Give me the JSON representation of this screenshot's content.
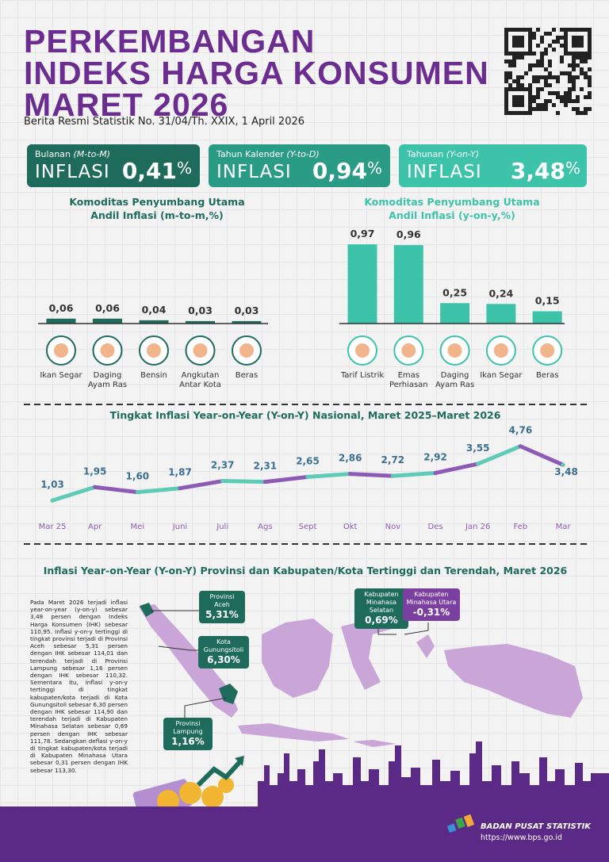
{
  "header": {
    "title_lines": [
      "PERKEMBANGAN",
      "INDEKS HARGA KONSUMEN",
      "MARET 2026"
    ],
    "subtitle": "Berita Resmi Statistik No. 31/04/Th. XXIX, 1 April 2026"
  },
  "cards": [
    {
      "label": "Bulanan",
      "label_note": "(M-to-M)",
      "word": "INFLASI",
      "value": "0,41",
      "unit": "%",
      "color": "#1e6b5b"
    },
    {
      "label": "Tahun Kalender",
      "label_note": "(Y-to-D)",
      "word": "INFLASI",
      "value": "0,94",
      "unit": "%",
      "color": "#2a9c86"
    },
    {
      "label": "Tahunan",
      "label_note": "(Y-on-Y)",
      "word": "INFLASI",
      "value": "3,48",
      "unit": "%",
      "color": "#3cc3aa"
    }
  ],
  "chart_data": [
    {
      "type": "bar",
      "title": "Komoditas Penyumbang Utama",
      "subtitle": "Andil Inflasi (m-to-m,%)",
      "title_color": "#1e6b5b",
      "categories": [
        "Ikan Segar",
        "Daging Ayam Ras",
        "Bensin",
        "Angkutan Antar Kota",
        "Beras"
      ],
      "values": [
        0.06,
        0.06,
        0.04,
        0.03,
        0.03
      ],
      "value_labels": [
        "0,06",
        "0,06",
        "0,04",
        "0,03",
        "0,03"
      ],
      "color": "#1e6b5b",
      "ylim": [
        0,
        1
      ]
    },
    {
      "type": "bar",
      "title": "Komoditas Penyumbang Utama",
      "subtitle": "Andil Inflasi (y-on-y,%)",
      "title_color": "#3cc3aa",
      "categories": [
        "Tarif Listrik",
        "Emas Perhiasan",
        "Daging Ayam Ras",
        "Ikan Segar",
        "Beras"
      ],
      "values": [
        0.97,
        0.96,
        0.25,
        0.24,
        0.15
      ],
      "value_labels": [
        "0,97",
        "0,96",
        "0,25",
        "0,24",
        "0,15"
      ],
      "color": "#3cc3aa",
      "ylim": [
        0,
        1
      ]
    },
    {
      "type": "line",
      "title": "Tingkat Inflasi Year-on-Year (Y-on-Y) Nasional, Maret 2025–Maret 2026",
      "categories": [
        "Mar 25",
        "Apr",
        "Mei",
        "Juni",
        "Juli",
        "Ags",
        "Sept",
        "Okt",
        "Nov",
        "Des",
        "Jan 26",
        "Feb",
        "Mar"
      ],
      "values": [
        1.03,
        1.95,
        1.6,
        1.87,
        2.37,
        2.31,
        2.65,
        2.86,
        2.72,
        2.92,
        3.55,
        4.76,
        3.48
      ],
      "value_labels": [
        "1,03",
        "1,95",
        "1,60",
        "1,87",
        "2,37",
        "2,31",
        "2,65",
        "2,86",
        "2,72",
        "2,92",
        "3,55",
        "4,76",
        "3,48"
      ],
      "colors": [
        "#5fcbb6",
        "#8d5bb5"
      ],
      "ylim": [
        0,
        6
      ]
    }
  ],
  "map": {
    "title": "Inflasi Year-on-Year (Y-on-Y) Provinsi dan Kabupaten/Kota Tertinggi dan Terendah, Maret 2026",
    "text": "Pada Maret 2026 terjadi inflasi year-on-year (y-on-y) sebesar 3,48 persen dengan Indeks Harga Konsumen (IHK) sebesar 110,95. Inflasi y-on-y tertinggi di tingkat provinsi terjadi di Provinsi Aceh sebesar 5,31 persen dengan IHK sebesar 114,01 dan terendah terjadi di Provinsi Lampung sebesar 1,16 persen dengan IHK sebesar 110,32. Sementara itu, inflasi y-on-y tertinggi di tingkat kabupaten/kota terjadi di Kota Gunungsitoli sebesar 6,30 persen dengan IHK sebesar 114,90 dan terendah terjadi di Kabupaten Minahasa Selatan sebesar 0,69 persen dengan IHK sebesar 111,78. Sedangkan deflasi y-on-y di tingkat kabupaten/kota terjadi di Kabupaten Minahasa Utara sebesar 0,31 persen dengan IHK sebesar 113,30.",
    "callouts": [
      {
        "label": "Provinsi Aceh",
        "value": "5,31%",
        "color": "#1e6b5b"
      },
      {
        "label": "Kota Gunungsitoli",
        "value": "6,30%",
        "color": "#1e6b5b"
      },
      {
        "label": "Provinsi Lampung",
        "value": "1,16%",
        "color": "#1e6b5b"
      },
      {
        "label": "Kabupaten Minahasa Selatan",
        "value": "0,69%",
        "color": "#1e6b5b"
      },
      {
        "label": "Kabupaten Minahasa Utara",
        "value": "-0,31%",
        "color": "#7b3fa0"
      }
    ]
  },
  "footer": {
    "org": "BADAN PUSAT STATISTIK",
    "url": "https://www.bps.go.id"
  }
}
